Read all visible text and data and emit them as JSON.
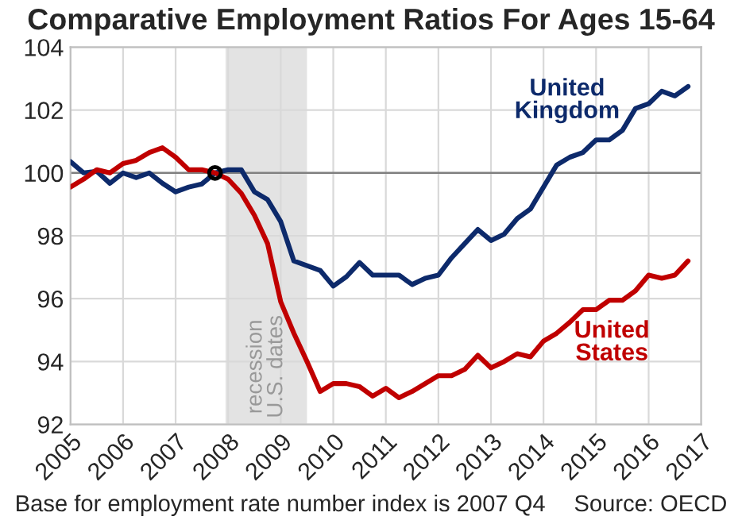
{
  "chart_data": {
    "type": "line",
    "title": "Comparative Employment Ratios For Ages 15-64",
    "x": [
      2005.0,
      2005.25,
      2005.5,
      2005.75,
      2006.0,
      2006.25,
      2006.5,
      2006.75,
      2007.0,
      2007.25,
      2007.5,
      2007.75,
      2008.0,
      2008.25,
      2008.5,
      2008.75,
      2009.0,
      2009.25,
      2009.5,
      2009.75,
      2010.0,
      2010.25,
      2010.5,
      2010.75,
      2011.0,
      2011.25,
      2011.5,
      2011.75,
      2012.0,
      2012.25,
      2012.5,
      2012.75,
      2013.0,
      2013.25,
      2013.5,
      2013.75,
      2014.0,
      2014.25,
      2014.5,
      2014.75,
      2015.0,
      2015.25,
      2015.5,
      2015.75,
      2016.0,
      2016.25,
      2016.5,
      2016.75
    ],
    "series": [
      {
        "name": "United Kingdom",
        "color": "#0d2a6b",
        "values": [
          100.36,
          100.0,
          100.05,
          99.67,
          100.0,
          99.85,
          100.0,
          99.67,
          99.4,
          99.55,
          99.65,
          100.0,
          100.1,
          100.1,
          99.4,
          99.15,
          98.45,
          97.2,
          97.05,
          96.9,
          96.4,
          96.7,
          97.15,
          96.75,
          96.75,
          96.75,
          96.45,
          96.65,
          96.75,
          97.3,
          97.75,
          98.2,
          97.85,
          98.05,
          98.55,
          98.85,
          99.55,
          100.25,
          100.5,
          100.65,
          101.05,
          101.05,
          101.35,
          102.05,
          102.2,
          102.6,
          102.45,
          102.75
        ]
      },
      {
        "name": "United States",
        "color": "#c00000",
        "values": [
          99.55,
          99.8,
          100.1,
          100.0,
          100.3,
          100.4,
          100.65,
          100.8,
          100.5,
          100.1,
          100.1,
          100.0,
          99.8,
          99.35,
          98.65,
          97.75,
          95.9,
          94.9,
          94.0,
          93.05,
          93.3,
          93.3,
          93.2,
          92.9,
          93.15,
          92.85,
          93.05,
          93.3,
          93.55,
          93.55,
          93.75,
          94.2,
          93.8,
          94.0,
          94.25,
          94.15,
          94.65,
          94.9,
          95.25,
          95.65,
          95.65,
          95.95,
          95.95,
          96.25,
          96.75,
          96.65,
          96.75,
          97.2
        ]
      },
      {
        "type": "scatter",
        "marker": "circle",
        "color": "#000000",
        "x": [
          2007.75
        ],
        "values": [
          100
        ]
      }
    ],
    "xlim": [
      2005,
      2017
    ],
    "xticks": [
      2005,
      2006,
      2007,
      2008,
      2009,
      2010,
      2011,
      2012,
      2013,
      2014,
      2015,
      2016,
      2017
    ],
    "ylim": [
      92,
      104
    ],
    "yticks": [
      92,
      94,
      96,
      98,
      100,
      102,
      104
    ],
    "grid": true,
    "marker": "none",
    "line_style": "solid",
    "ref_lines": [
      {
        "axis": "y",
        "value": 100,
        "color": "#808080"
      }
    ],
    "bands": [
      {
        "axis": "x",
        "from": 2007.95,
        "to": 2009.5,
        "label": "recession\nU.S. dates",
        "color": "#e3e3e3"
      }
    ],
    "annotations": [
      "Base for employment rate number index is 2007 Q4",
      "Source: OECD"
    ]
  }
}
